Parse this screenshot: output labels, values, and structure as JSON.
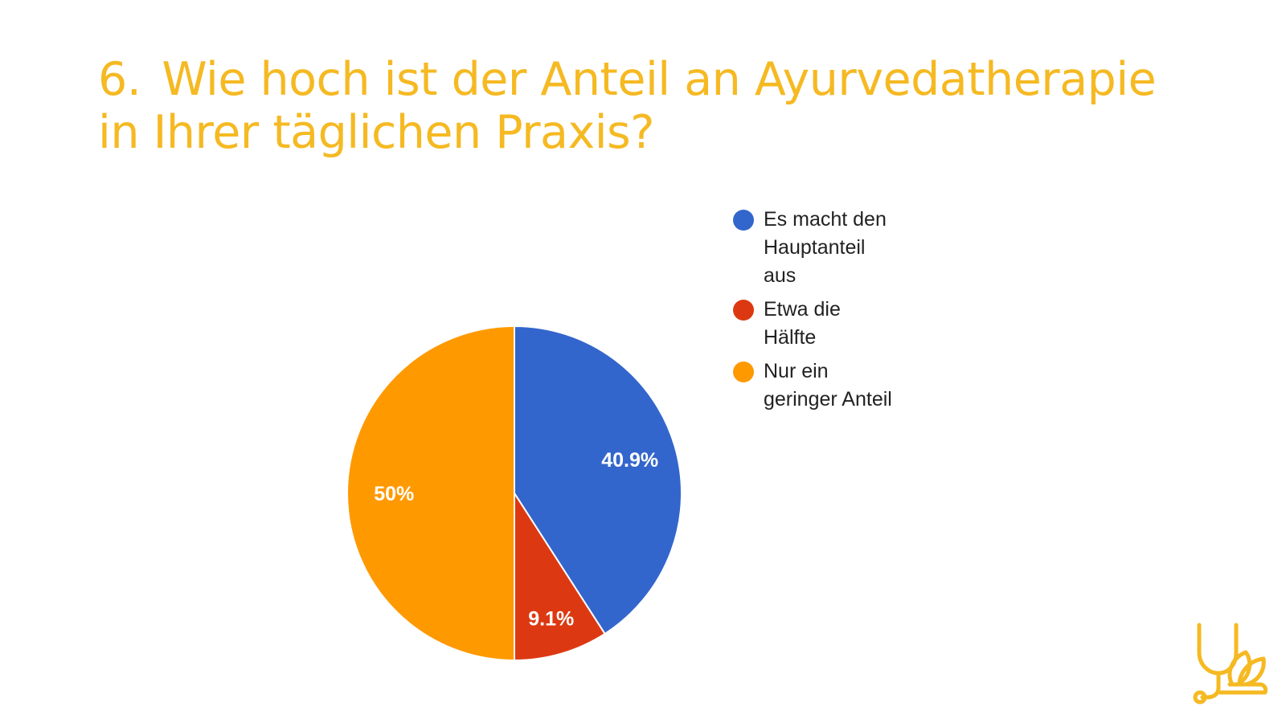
{
  "slide": {
    "number": "6.",
    "title": "Wie hoch ist der Anteil an Ayurvedatherapie in Ihrer täglichen Praxis?",
    "title_color": "#f5b922"
  },
  "chart_data": {
    "type": "pie",
    "title": "",
    "slices": [
      {
        "name": "Es macht den Hauptanteil aus",
        "value": 40.9,
        "label": "40.9%",
        "color": "#3366cc"
      },
      {
        "name": "Etwa die Hälfte",
        "value": 9.1,
        "label": "9.1%",
        "color": "#dc3912"
      },
      {
        "name": "Nur ein geringer Anteil",
        "value": 50,
        "label": "50%",
        "color": "#ff9900"
      }
    ],
    "start_angle": "12 o'clock",
    "direction": "clockwise",
    "legend_position": "right"
  },
  "legend": {
    "items": [
      {
        "line1": "Es macht den",
        "line2": "Hauptanteil",
        "line3": "aus"
      },
      {
        "line1": "Etwa die",
        "line2": "Hälfte"
      },
      {
        "line1": "Nur ein",
        "line2": "geringer Anteil"
      }
    ]
  },
  "logo": {
    "icon": "stethoscope-leaf-icon",
    "color": "#f5b922"
  }
}
